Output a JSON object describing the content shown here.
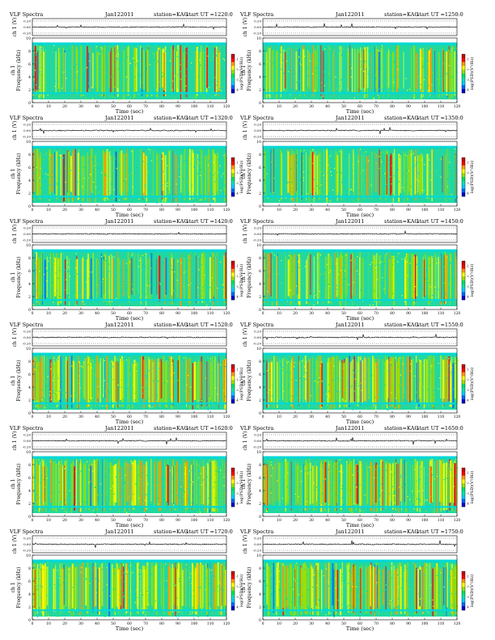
{
  "page": {
    "background": "#ffffff"
  },
  "chart_data": [
    {
      "type": "heatmap",
      "title": "VLF Spectra",
      "date": "Jan122011",
      "station": "station=KAG",
      "start_label": "start UT =1220:0",
      "trace_label": "ch 1 (V)",
      "trace_ticks": [
        "0.20",
        "0.00",
        "-0.20"
      ],
      "ylabel": "Frequency (kHz)",
      "ylabel_prefix": "ch 1",
      "yticks": [
        "0",
        "2",
        "4",
        "6",
        "8",
        "10"
      ],
      "ylim": [
        0,
        10
      ],
      "xlabel": "Time (sec)",
      "xticks": [
        "0",
        "10",
        "20",
        "30",
        "40",
        "50",
        "60",
        "70",
        "80",
        "90",
        "100",
        "110",
        "120"
      ],
      "xlim": [
        0,
        120
      ],
      "colorbar_label": "log(PSD)(V²/Hz)",
      "colorbar_ticks": [
        "-1",
        "-2",
        "-3",
        "-4"
      ],
      "active_band_khz": [
        0.5,
        9.3
      ],
      "noise_band_khz": 1.5
    },
    {
      "type": "heatmap",
      "title": "VLF Spectra",
      "date": "Jan122011",
      "station": "station=KAG",
      "start_label": "start UT =1250:0",
      "trace_label": "ch 1 (V)",
      "trace_ticks": [
        "0.20",
        "0.00",
        "-0.20"
      ],
      "ylabel": "Frequency (kHz)",
      "ylabel_prefix": "ch 1",
      "yticks": [
        "0",
        "2",
        "4",
        "6",
        "8",
        "10"
      ],
      "ylim": [
        0,
        10
      ],
      "xlabel": "Time (sec)",
      "xticks": [
        "0",
        "10",
        "20",
        "30",
        "40",
        "50",
        "60",
        "70",
        "80",
        "90",
        "100",
        "110",
        "120"
      ],
      "xlim": [
        0,
        120
      ],
      "colorbar_label": "log(PSD)(V²/Hz)",
      "colorbar_ticks": [
        "-1",
        "-2",
        "-3",
        "-4"
      ],
      "active_band_khz": [
        0.5,
        9.3
      ],
      "noise_band_khz": 1.5
    },
    {
      "type": "heatmap",
      "title": "VLF Spectra",
      "date": "Jan122011",
      "station": "station=KAG",
      "start_label": "start UT =1320:0",
      "trace_label": "ch 1 (V)",
      "trace_ticks": [
        "0.20",
        "0.00",
        "-0.20"
      ],
      "ylabel": "Frequency (kHz)",
      "ylabel_prefix": "ch 1",
      "yticks": [
        "0",
        "2",
        "4",
        "6",
        "8",
        "10"
      ],
      "ylim": [
        0,
        10
      ],
      "xlabel": "Time (sec)",
      "xticks": [
        "0",
        "10",
        "20",
        "30",
        "40",
        "50",
        "60",
        "70",
        "80",
        "90",
        "100",
        "110",
        "120"
      ],
      "xlim": [
        0,
        120
      ],
      "colorbar_label": "log(PSD)(V²/Hz)",
      "colorbar_ticks": [
        "-1",
        "-2",
        "-3",
        "-4"
      ],
      "active_band_khz": [
        0.5,
        9.3
      ],
      "noise_band_khz": 1.5
    },
    {
      "type": "heatmap",
      "title": "VLF Spectra",
      "date": "Jan122011",
      "station": "station=KAG",
      "start_label": "start UT =1350:0",
      "trace_label": "ch 1 (V)",
      "trace_ticks": [
        "0.20",
        "0.00",
        "-0.20"
      ],
      "ylabel": "Frequency (kHz)",
      "ylabel_prefix": "ch 1",
      "yticks": [
        "0",
        "2",
        "4",
        "6",
        "8",
        "10"
      ],
      "ylim": [
        0,
        10
      ],
      "xlabel": "Time (sec)",
      "xticks": [
        "0",
        "10",
        "20",
        "30",
        "40",
        "50",
        "60",
        "70",
        "80",
        "90",
        "100",
        "110",
        "120"
      ],
      "xlim": [
        0,
        120
      ],
      "colorbar_label": "log(PSD)(V²/Hz)",
      "colorbar_ticks": [
        "-1",
        "-2",
        "-3",
        "-4"
      ],
      "active_band_khz": [
        0.5,
        9.3
      ],
      "noise_band_khz": 1.5
    },
    {
      "type": "heatmap",
      "title": "VLF Spectra",
      "date": "Jan122011",
      "station": "station=KAG",
      "start_label": "start UT =1420:0",
      "trace_label": "ch 1 (V)",
      "trace_ticks": [
        "0.20",
        "0.00",
        "-0.20"
      ],
      "ylabel": "Frequency (kHz)",
      "ylabel_prefix": "ch 1",
      "yticks": [
        "0",
        "2",
        "4",
        "6",
        "8",
        "10"
      ],
      "ylim": [
        0,
        10
      ],
      "xlabel": "Time (sec)",
      "xticks": [
        "0",
        "10",
        "20",
        "30",
        "40",
        "50",
        "60",
        "70",
        "80",
        "90",
        "100",
        "110",
        "120"
      ],
      "xlim": [
        0,
        120
      ],
      "colorbar_label": "log(PSD)(V²/Hz)",
      "colorbar_ticks": [
        "-1",
        "-2",
        "-3",
        "-4"
      ],
      "active_band_khz": [
        0.5,
        9.3
      ],
      "noise_band_khz": 1.5
    },
    {
      "type": "heatmap",
      "title": "VLF Spectra",
      "date": "Jan122011",
      "station": "station=KAG",
      "start_label": "start UT =1450:0",
      "trace_label": "ch 1 (V)",
      "trace_ticks": [
        "0.20",
        "0.00",
        "-0.20"
      ],
      "ylabel": "Frequency (kHz)",
      "ylabel_prefix": "ch 1",
      "yticks": [
        "0",
        "2",
        "4",
        "6",
        "8",
        "10"
      ],
      "ylim": [
        0,
        10
      ],
      "xlabel": "Time (sec)",
      "xticks": [
        "0",
        "10",
        "20",
        "30",
        "40",
        "50",
        "60",
        "70",
        "80",
        "90",
        "100",
        "110",
        "120"
      ],
      "xlim": [
        0,
        120
      ],
      "colorbar_label": "log(PSD)(V²/Hz)",
      "colorbar_ticks": [
        "-1",
        "-2",
        "-3",
        "-4"
      ],
      "active_band_khz": [
        0.5,
        9.3
      ],
      "noise_band_khz": 1.5
    },
    {
      "type": "heatmap",
      "title": "VLF Spectra",
      "date": "Jan122011",
      "station": "station=KAG",
      "start_label": "start UT =1520:0",
      "trace_label": "ch 1 (V)",
      "trace_ticks": [
        "0.20",
        "0.00",
        "-0.20"
      ],
      "ylabel": "Frequency (kHz)",
      "ylabel_prefix": "ch 1",
      "yticks": [
        "0",
        "2",
        "4",
        "6",
        "8",
        "10"
      ],
      "ylim": [
        0,
        10
      ],
      "xlabel": "Time (sec)",
      "xticks": [
        "0",
        "10",
        "20",
        "30",
        "40",
        "50",
        "60",
        "70",
        "80",
        "90",
        "100",
        "110",
        "120"
      ],
      "xlim": [
        0,
        120
      ],
      "colorbar_label": "log(PSD)(V²/Hz)",
      "colorbar_ticks": [
        "-1",
        "-2",
        "-3",
        "-4"
      ],
      "active_band_khz": [
        0.5,
        9.3
      ],
      "noise_band_khz": 1.5
    },
    {
      "type": "heatmap",
      "title": "VLF Spectra",
      "date": "Jan122011",
      "station": "station=KAG",
      "start_label": "start UT =1550:0",
      "trace_label": "ch 1 (V)",
      "trace_ticks": [
        "0.20",
        "0.00",
        "-0.20"
      ],
      "ylabel": "Frequency (kHz)",
      "ylabel_prefix": "ch 1",
      "yticks": [
        "0",
        "2",
        "4",
        "6",
        "8",
        "10"
      ],
      "ylim": [
        0,
        10
      ],
      "xlabel": "Time (sec)",
      "xticks": [
        "0",
        "10",
        "20",
        "30",
        "40",
        "50",
        "60",
        "70",
        "80",
        "90",
        "100",
        "110",
        "120"
      ],
      "xlim": [
        0,
        120
      ],
      "colorbar_label": "log(PSD)(V²/Hz)",
      "colorbar_ticks": [
        "-1",
        "-2",
        "-3",
        "-4"
      ],
      "active_band_khz": [
        0.5,
        9.3
      ],
      "noise_band_khz": 1.5
    },
    {
      "type": "heatmap",
      "title": "VLF Spectra",
      "date": "Jan122011",
      "station": "station=KAG",
      "start_label": "start UT =1620:0",
      "trace_label": "ch 1 (V)",
      "trace_ticks": [
        "0.20",
        "0.00",
        "-0.20"
      ],
      "ylabel": "Frequency (kHz)",
      "ylabel_prefix": "ch 1",
      "yticks": [
        "0",
        "2",
        "4",
        "6",
        "8",
        "10"
      ],
      "ylim": [
        0,
        10
      ],
      "xlabel": "Time (sec)",
      "xticks": [
        "0",
        "10",
        "20",
        "30",
        "40",
        "50",
        "60",
        "70",
        "80",
        "90",
        "100",
        "110",
        "120"
      ],
      "xlim": [
        0,
        120
      ],
      "colorbar_label": "log(PSD)(V²/Hz)",
      "colorbar_ticks": [
        "-1",
        "-2",
        "-3",
        "-4"
      ],
      "active_band_khz": [
        0.5,
        9.3
      ],
      "noise_band_khz": 1.5
    },
    {
      "type": "heatmap",
      "title": "VLF Spectra",
      "date": "Jan122011",
      "station": "station=KAG",
      "start_label": "start UT =1650:0",
      "trace_label": "ch 1 (V)",
      "trace_ticks": [
        "0.20",
        "0.00",
        "-0.20"
      ],
      "ylabel": "Frequency (kHz)",
      "ylabel_prefix": "ch 1",
      "yticks": [
        "0",
        "2",
        "4",
        "6",
        "8",
        "10"
      ],
      "ylim": [
        0,
        10
      ],
      "xlabel": "Time (sec)",
      "xticks": [
        "0",
        "10",
        "20",
        "30",
        "40",
        "50",
        "60",
        "70",
        "80",
        "90",
        "100",
        "110",
        "120"
      ],
      "xlim": [
        0,
        120
      ],
      "colorbar_label": "log(PSD)(V²/Hz)",
      "colorbar_ticks": [
        "-1",
        "-2",
        "-3",
        "-4"
      ],
      "active_band_khz": [
        0.5,
        9.3
      ],
      "noise_band_khz": 1.5
    },
    {
      "type": "heatmap",
      "title": "VLF Spectra",
      "date": "Jan122011",
      "station": "station=KAG",
      "start_label": "start UT =1720:0",
      "trace_label": "ch 1 (V)",
      "trace_ticks": [
        "0.20",
        "0.00",
        "-0.20"
      ],
      "ylabel": "Frequency (kHz)",
      "ylabel_prefix": "ch 1",
      "yticks": [
        "0",
        "2",
        "4",
        "6",
        "8",
        "10"
      ],
      "ylim": [
        0,
        10
      ],
      "xlabel": "Time (sec)",
      "xticks": [
        "0",
        "10",
        "20",
        "30",
        "40",
        "50",
        "60",
        "70",
        "80",
        "90",
        "100",
        "110",
        "120"
      ],
      "xlim": [
        0,
        120
      ],
      "colorbar_label": "log(PSD)(V²/Hz)",
      "colorbar_ticks": [
        "-1",
        "-2",
        "-3",
        "-4"
      ],
      "active_band_khz": [
        0.5,
        9.3
      ],
      "noise_band_khz": 1.5
    },
    {
      "type": "heatmap",
      "title": "VLF Spectra",
      "date": "Jan122011",
      "station": "station=KAG",
      "start_label": "start UT =1750:0",
      "trace_label": "ch 1 (V)",
      "trace_ticks": [
        "0.20",
        "0.00",
        "-0.20"
      ],
      "ylabel": "Frequency (kHz)",
      "ylabel_prefix": "ch 1",
      "yticks": [
        "0",
        "2",
        "4",
        "6",
        "8",
        "10"
      ],
      "ylim": [
        0,
        10
      ],
      "xlabel": "Time (sec)",
      "xticks": [
        "0",
        "10",
        "20",
        "30",
        "40",
        "50",
        "60",
        "70",
        "80",
        "90",
        "100",
        "110",
        "120"
      ],
      "xlim": [
        0,
        120
      ],
      "colorbar_label": "log(PSD)(V²/Hz)",
      "colorbar_ticks": [
        "-1",
        "-2",
        "-3",
        "-4"
      ],
      "active_band_khz": [
        0.5,
        9.3
      ],
      "noise_band_khz": 1.5
    }
  ],
  "colormap": [
    "#0000cc",
    "#0066ff",
    "#00ccff",
    "#00e5aa",
    "#00e060",
    "#9be000",
    "#ffff00",
    "#ff9900",
    "#ff0000",
    "#cc0000"
  ],
  "colors": {
    "background_band": "#00d8d8",
    "spectrogram_base": "#22d8a0",
    "trace": "#000000"
  }
}
